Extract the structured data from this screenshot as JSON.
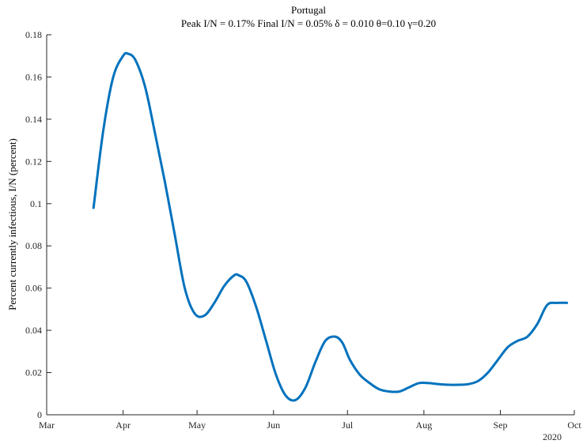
{
  "chart_data": {
    "type": "line",
    "title": "Portugal",
    "subtitle": "Peak I/N =  0.17%   Final I/N =  0.05%   δ = 0.010  θ=0.10  γ=0.20",
    "xlabel": "",
    "ylabel": "Percent currently infectious, I/N (percent)",
    "xlim": [
      "2020-03-01",
      "2020-10-01"
    ],
    "ylim": [
      0,
      0.18
    ],
    "x_ticks": [
      "Mar",
      "Apr",
      "May",
      "Jun",
      "Jul",
      "Aug",
      "Sep",
      "Oct"
    ],
    "x_tick_dates": [
      "2020-03-01",
      "2020-04-01",
      "2020-05-01",
      "2020-06-01",
      "2020-07-01",
      "2020-08-01",
      "2020-09-01",
      "2020-10-01"
    ],
    "year_label": "2020",
    "y_ticks": [
      "0",
      "0.02",
      "0.04",
      "0.06",
      "0.08",
      "0.1",
      "0.12",
      "0.14",
      "0.16",
      "0.18"
    ],
    "y_tick_values": [
      0,
      0.02,
      0.04,
      0.06,
      0.08,
      0.1,
      0.12,
      0.14,
      0.16,
      0.18
    ],
    "grid": false,
    "line_color": "#0072BD",
    "series": [
      {
        "x": [
          "2020-03-20",
          "2020-03-24",
          "2020-03-28",
          "2020-04-01",
          "2020-04-03",
          "2020-04-06",
          "2020-04-10",
          "2020-04-14",
          "2020-04-18",
          "2020-04-22",
          "2020-04-26",
          "2020-04-30",
          "2020-05-04",
          "2020-05-08",
          "2020-05-12",
          "2020-05-16",
          "2020-05-18",
          "2020-05-21",
          "2020-05-25",
          "2020-05-29",
          "2020-06-02",
          "2020-06-06",
          "2020-06-10",
          "2020-06-14",
          "2020-06-18",
          "2020-06-22",
          "2020-06-26",
          "2020-06-29",
          "2020-07-02",
          "2020-07-06",
          "2020-07-10",
          "2020-07-14",
          "2020-07-18",
          "2020-07-22",
          "2020-07-26",
          "2020-07-30",
          "2020-08-03",
          "2020-08-07",
          "2020-08-11",
          "2020-08-15",
          "2020-08-19",
          "2020-08-23",
          "2020-08-27",
          "2020-08-31",
          "2020-09-04",
          "2020-09-08",
          "2020-09-12",
          "2020-09-16",
          "2020-09-20",
          "2020-09-24",
          "2020-09-28"
        ],
        "y": [
          0.098,
          0.135,
          0.16,
          0.17,
          0.171,
          0.168,
          0.155,
          0.133,
          0.11,
          0.085,
          0.06,
          0.048,
          0.047,
          0.053,
          0.061,
          0.066,
          0.066,
          0.063,
          0.051,
          0.035,
          0.019,
          0.009,
          0.007,
          0.013,
          0.025,
          0.035,
          0.037,
          0.034,
          0.026,
          0.019,
          0.015,
          0.012,
          0.011,
          0.011,
          0.013,
          0.015,
          0.015,
          0.0145,
          0.0142,
          0.0142,
          0.0145,
          0.016,
          0.02,
          0.026,
          0.032,
          0.035,
          0.037,
          0.043,
          0.052,
          0.053,
          0.053
        ]
      }
    ]
  }
}
